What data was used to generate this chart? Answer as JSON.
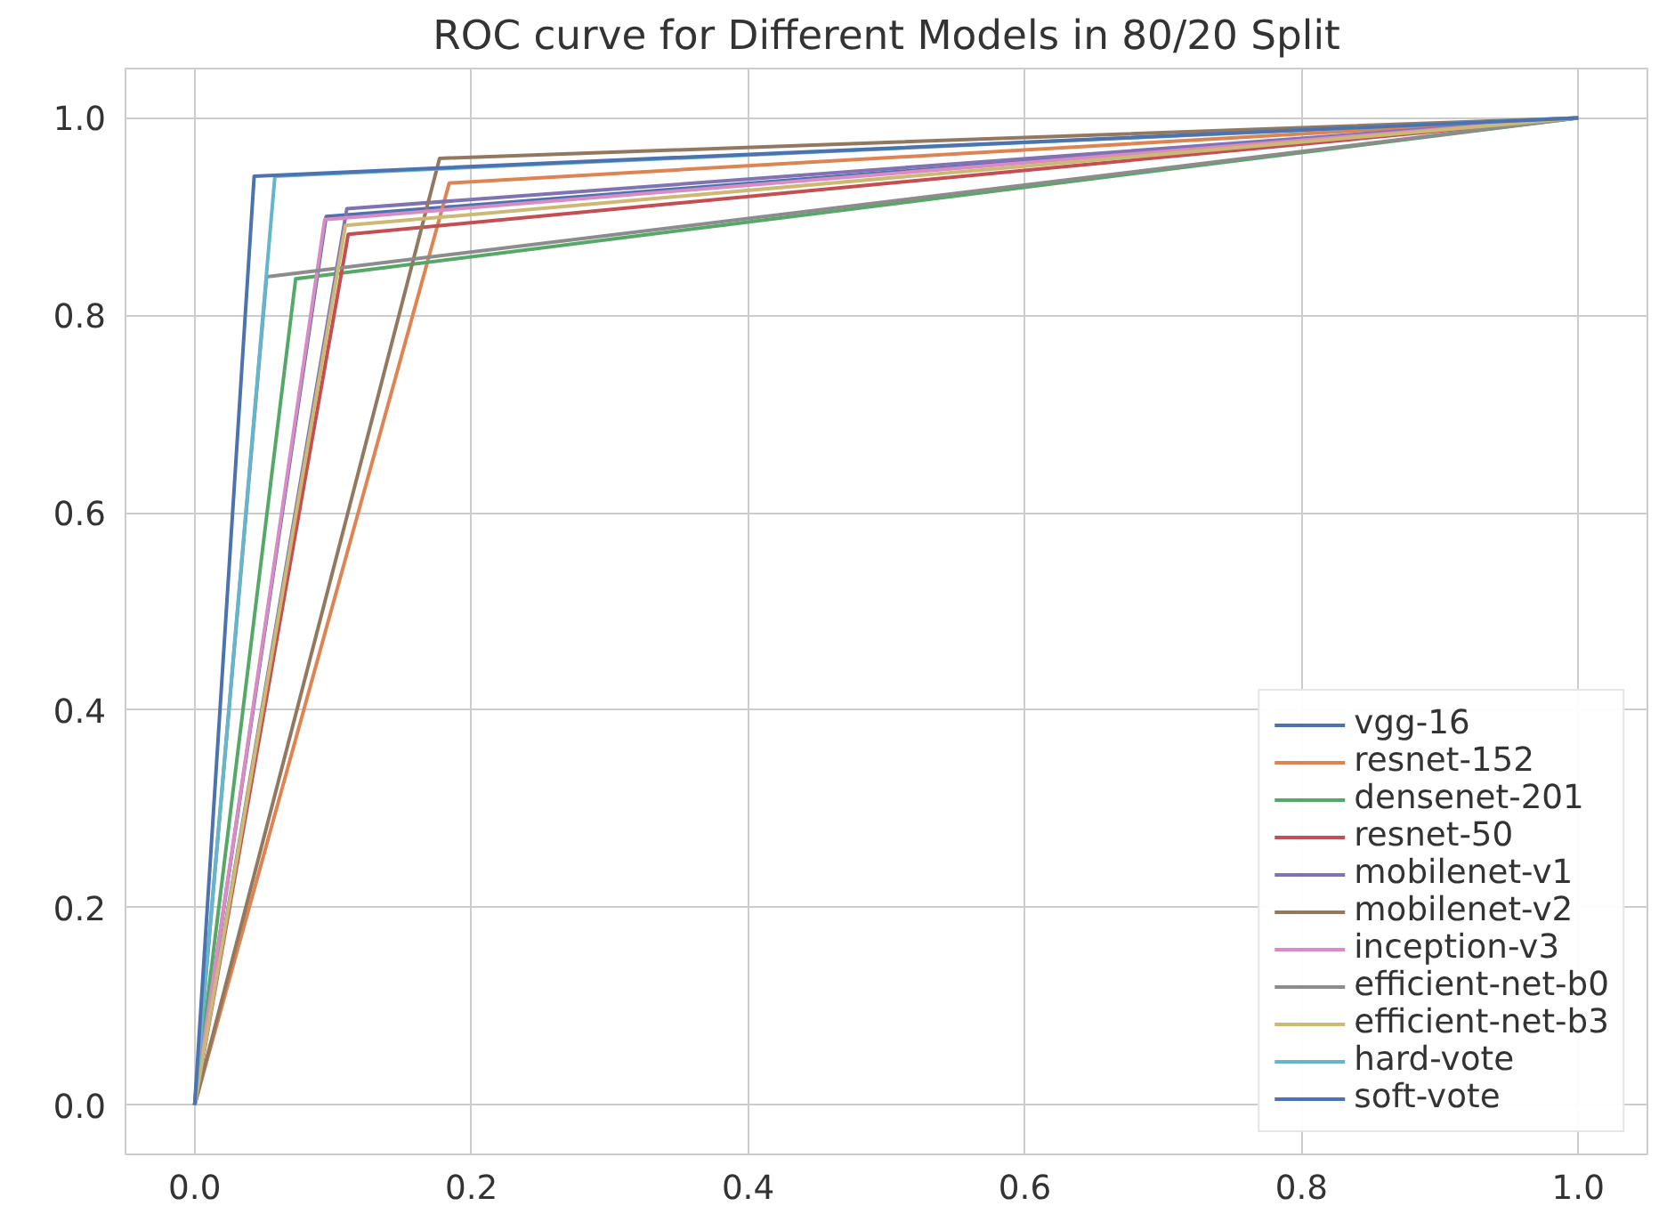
{
  "chart_data": {
    "type": "line",
    "title": "ROC curve for Different Models in 80/20 Split",
    "xlim": [
      -0.05,
      1.05
    ],
    "ylim": [
      -0.05,
      1.05
    ],
    "xticks": [
      {
        "value": 0,
        "label": "0.0"
      },
      0.2,
      0.4,
      0.6,
      0.8,
      {
        "value": 1,
        "label": "1.0"
      }
    ],
    "yticks": [
      {
        "value": 0,
        "label": "0.0"
      },
      0.2,
      0.4,
      0.6,
      0.8,
      {
        "value": 1,
        "label": "1.0"
      }
    ],
    "grid": true,
    "legend": "bottom right",
    "line_style": "solid",
    "marker": "none",
    "series": [
      {
        "name": "vgg-16",
        "color": "#4c72b0",
        "x": [
          0,
          0.095,
          1
        ],
        "values": [
          0,
          0.9,
          1
        ]
      },
      {
        "name": "resnet-152",
        "color": "#dd8452",
        "x": [
          0,
          0.184,
          1
        ],
        "values": [
          0,
          0.934,
          1
        ]
      },
      {
        "name": "densenet-201",
        "color": "#55a868",
        "x": [
          0,
          0.073,
          1
        ],
        "values": [
          0,
          0.837,
          1
        ]
      },
      {
        "name": "resnet-50",
        "color": "#c44e52",
        "x": [
          0,
          0.111,
          1
        ],
        "values": [
          0,
          0.882,
          1
        ]
      },
      {
        "name": "mobilenet-v1",
        "color": "#8172b3",
        "x": [
          0,
          0.11,
          1
        ],
        "values": [
          0,
          0.908,
          1
        ]
      },
      {
        "name": "mobilenet-v2",
        "color": "#937860",
        "x": [
          0,
          0.177,
          1
        ],
        "values": [
          0,
          0.959,
          1
        ]
      },
      {
        "name": "inception-v3",
        "color": "#da8bc3",
        "x": [
          0,
          0.094,
          1
        ],
        "values": [
          0,
          0.897,
          1
        ]
      },
      {
        "name": "efficient-net-b0",
        "color": "#8c8c8c",
        "x": [
          0,
          0.052,
          1
        ],
        "values": [
          0,
          0.839,
          1
        ]
      },
      {
        "name": "efficient-net-b3",
        "color": "#ccb974",
        "x": [
          0,
          0.109,
          1
        ],
        "values": [
          0,
          0.891,
          1
        ]
      },
      {
        "name": "hard-vote",
        "color": "#64b5cd",
        "x": [
          0,
          0.058,
          1
        ],
        "values": [
          0,
          0.941,
          1
        ]
      },
      {
        "name": "soft-vote",
        "color": "#4c72b0",
        "x": [
          0,
          0.043,
          1
        ],
        "values": [
          0,
          0.941,
          1
        ]
      }
    ]
  }
}
